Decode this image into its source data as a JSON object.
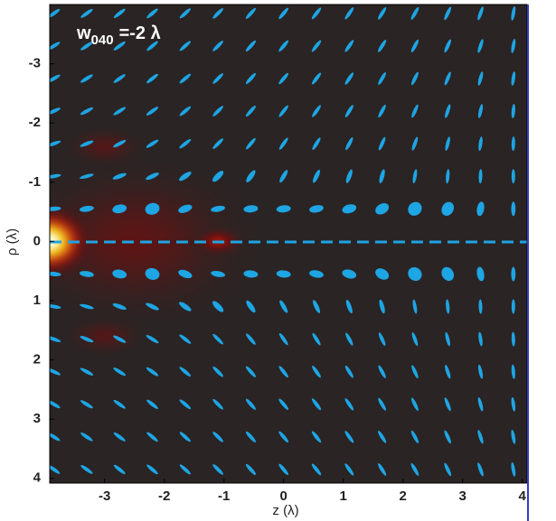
{
  "chart_data": {
    "type": "polarization-map",
    "annotation": {
      "w": "w",
      "sub": "040",
      "rest": "=-2 λ"
    },
    "xlabel": "z (λ)",
    "ylabel": "ρ (λ)",
    "xlim": [
      -3.92,
      4.08
    ],
    "ylim": [
      -4,
      4.08
    ],
    "xticks": [
      -3,
      -2,
      -1,
      0,
      1,
      2,
      3,
      4
    ],
    "yticks": [
      -3,
      -2,
      -1,
      0,
      1,
      2,
      3,
      4
    ],
    "colormap": [
      "#2a2424",
      "#6e1010",
      "#c0200a",
      "#f07010",
      "#ffd020",
      "#ffffe6"
    ],
    "ellipse_color": "#1ea5e3",
    "peaks": [
      {
        "z": -2.5,
        "rho": 0,
        "value": 0.15,
        "sz": 2.4,
        "srho": 1.6
      },
      {
        "z": -3,
        "rho": -1.6,
        "value": 0.12,
        "sz": 0.8,
        "srho": 0.4
      },
      {
        "z": -3,
        "rho": 1.6,
        "value": 0.12,
        "sz": 0.8,
        "srho": 0.4
      },
      {
        "z": -1.1,
        "rho": 0,
        "value": 0.3,
        "sz": 0.5,
        "srho": 0.3
      },
      {
        "z": -3.92,
        "rho": 0,
        "value": 1,
        "sz": 0.8,
        "srho": 0.7
      }
    ],
    "field": {
      "z": [
        -3.85,
        -3.3,
        -2.75,
        -2.2,
        -1.65,
        -1.1,
        -0.55,
        0,
        0.55,
        1.1,
        1.65,
        2.2,
        2.75,
        3.3,
        3.85
      ],
      "rho": [
        -3.85,
        -3.3,
        -2.75,
        -2.2,
        -1.65,
        -1.1,
        -0.55,
        0.55,
        1.1,
        1.65,
        2.2,
        2.75,
        3.3,
        3.85
      ],
      "angle": [
        [
          35,
          35,
          38,
          40,
          42,
          45,
          48,
          50,
          52,
          55,
          58,
          60,
          65,
          70,
          80
        ],
        [
          32,
          34,
          36,
          40,
          42,
          45,
          48,
          50,
          52,
          55,
          58,
          62,
          66,
          72,
          80
        ],
        [
          30,
          32,
          35,
          38,
          40,
          45,
          48,
          50,
          53,
          56,
          60,
          64,
          68,
          75,
          82
        ],
        [
          25,
          28,
          32,
          35,
          40,
          45,
          48,
          52,
          55,
          58,
          62,
          66,
          72,
          78,
          85
        ],
        [
          20,
          22,
          28,
          32,
          38,
          45,
          50,
          55,
          58,
          62,
          66,
          70,
          76,
          82,
          88
        ],
        [
          10,
          15,
          20,
          25,
          35,
          45,
          55,
          60,
          65,
          70,
          75,
          80,
          85,
          88,
          90
        ],
        [
          5,
          8,
          10,
          15,
          20,
          10,
          5,
          5,
          10,
          15,
          30,
          45,
          60,
          80,
          90
        ],
        [
          -5,
          -8,
          -10,
          -15,
          -20,
          -10,
          -5,
          -5,
          -10,
          -15,
          -30,
          -45,
          -60,
          -80,
          -90
        ],
        [
          -10,
          -15,
          -20,
          -25,
          -35,
          -45,
          -55,
          -60,
          -65,
          -70,
          -75,
          -80,
          -85,
          -88,
          -90
        ],
        [
          -20,
          -22,
          -28,
          -32,
          -38,
          -45,
          -50,
          -55,
          -58,
          -62,
          -66,
          -70,
          -76,
          -82,
          -88
        ],
        [
          -25,
          -28,
          -32,
          -35,
          -40,
          -45,
          -48,
          -52,
          -55,
          -58,
          -62,
          -66,
          -72,
          -78,
          -85
        ],
        [
          -30,
          -32,
          -35,
          -38,
          -40,
          -45,
          -48,
          -50,
          -53,
          -56,
          -60,
          -64,
          -68,
          -75,
          -82
        ],
        [
          -32,
          -34,
          -36,
          -40,
          -42,
          -45,
          -48,
          -50,
          -52,
          -55,
          -58,
          -62,
          -66,
          -72,
          -80
        ],
        [
          -35,
          -35,
          -38,
          -40,
          -42,
          -45,
          -48,
          -50,
          -52,
          -55,
          -58,
          -60,
          -65,
          -70,
          -80
        ]
      ],
      "ratio": [
        [
          0.25,
          0.25,
          0.25,
          0.25,
          0.25,
          0.25,
          0.25,
          0.25,
          0.25,
          0.25,
          0.25,
          0.25,
          0.25,
          0.25,
          0.25
        ],
        [
          0.25,
          0.25,
          0.25,
          0.25,
          0.25,
          0.25,
          0.25,
          0.25,
          0.25,
          0.25,
          0.25,
          0.25,
          0.25,
          0.25,
          0.25
        ],
        [
          0.25,
          0.25,
          0.25,
          0.25,
          0.25,
          0.25,
          0.25,
          0.25,
          0.25,
          0.25,
          0.25,
          0.25,
          0.25,
          0.25,
          0.25
        ],
        [
          0.25,
          0.25,
          0.25,
          0.25,
          0.25,
          0.25,
          0.25,
          0.25,
          0.25,
          0.25,
          0.25,
          0.25,
          0.25,
          0.25,
          0.25
        ],
        [
          0.25,
          0.25,
          0.25,
          0.25,
          0.25,
          0.25,
          0.25,
          0.25,
          0.25,
          0.25,
          0.25,
          0.25,
          0.25,
          0.25,
          0.25
        ],
        [
          0.25,
          0.25,
          0.3,
          0.3,
          0.35,
          0.4,
          0.35,
          0.3,
          0.3,
          0.3,
          0.3,
          0.25,
          0.25,
          0.25,
          0.25
        ],
        [
          0.3,
          0.4,
          0.6,
          0.8,
          0.5,
          0.4,
          0.5,
          0.5,
          0.5,
          0.6,
          0.7,
          0.9,
          0.8,
          0.5,
          0.3
        ],
        [
          0.3,
          0.4,
          0.6,
          0.8,
          0.5,
          0.4,
          0.5,
          0.5,
          0.5,
          0.6,
          0.7,
          0.9,
          0.8,
          0.5,
          0.3
        ],
        [
          0.25,
          0.25,
          0.3,
          0.3,
          0.35,
          0.4,
          0.35,
          0.3,
          0.3,
          0.3,
          0.3,
          0.25,
          0.25,
          0.25,
          0.25
        ],
        [
          0.25,
          0.25,
          0.25,
          0.25,
          0.25,
          0.25,
          0.25,
          0.25,
          0.25,
          0.25,
          0.25,
          0.25,
          0.25,
          0.25,
          0.25
        ],
        [
          0.25,
          0.25,
          0.25,
          0.25,
          0.25,
          0.25,
          0.25,
          0.25,
          0.25,
          0.25,
          0.25,
          0.25,
          0.25,
          0.25,
          0.25
        ],
        [
          0.25,
          0.25,
          0.25,
          0.25,
          0.25,
          0.25,
          0.25,
          0.25,
          0.25,
          0.25,
          0.25,
          0.25,
          0.25,
          0.25,
          0.25
        ],
        [
          0.25,
          0.25,
          0.25,
          0.25,
          0.25,
          0.25,
          0.25,
          0.25,
          0.25,
          0.25,
          0.25,
          0.25,
          0.25,
          0.25,
          0.25
        ],
        [
          0.25,
          0.25,
          0.25,
          0.25,
          0.25,
          0.25,
          0.25,
          0.25,
          0.25,
          0.25,
          0.25,
          0.25,
          0.25,
          0.25,
          0.25
        ]
      ]
    }
  }
}
